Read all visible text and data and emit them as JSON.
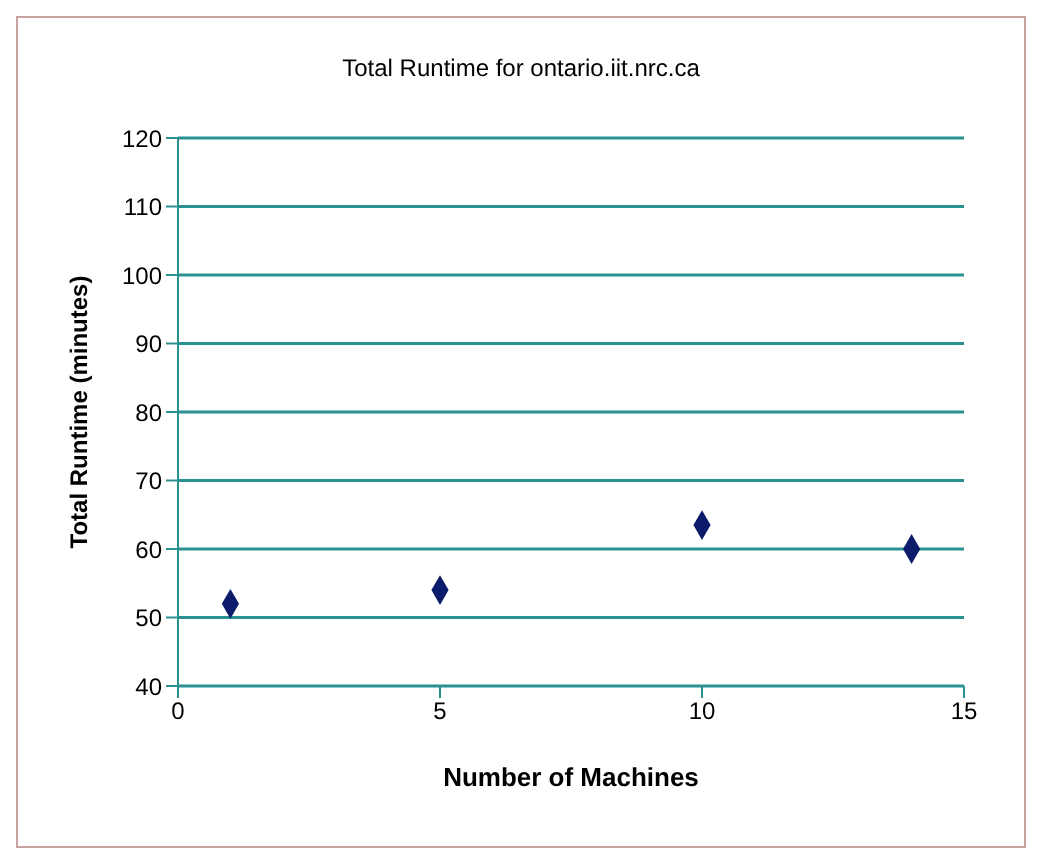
{
  "chart_data": {
    "type": "scatter",
    "title": "Total Runtime for ontario.iit.nrc.ca",
    "xlabel": "Number of Machines",
    "ylabel": "Total Runtime (minutes)",
    "x": [
      1,
      5,
      10,
      14
    ],
    "series": [
      {
        "color": "#0d1b6b",
        "values": [
          52,
          54,
          63.5,
          60
        ]
      }
    ],
    "xlim": [
      0,
      15
    ],
    "xticks": [
      0,
      5,
      10,
      15
    ],
    "ylim": [
      40,
      120
    ],
    "yticks": [
      40,
      50,
      60,
      70,
      80,
      90,
      100,
      110,
      120
    ],
    "grid": "y",
    "marker": "diamond"
  }
}
